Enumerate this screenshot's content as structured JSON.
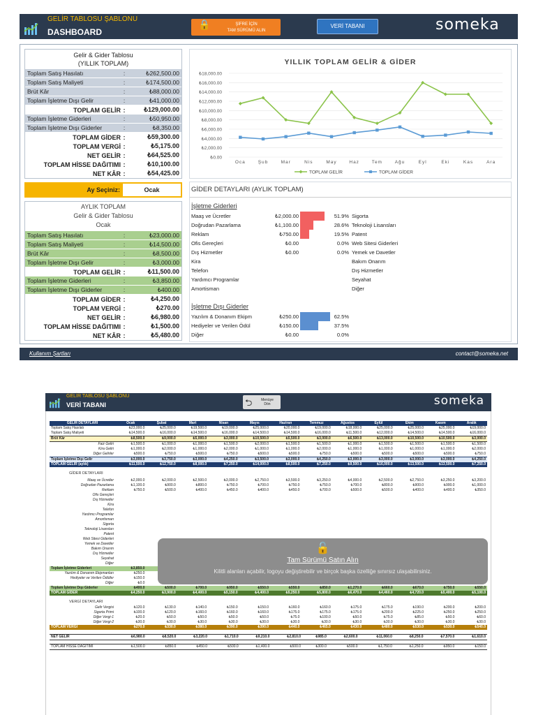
{
  "dashboard": {
    "template_title": "GELİR TABLOSU ŞABLONU",
    "title": "DASHBOARD",
    "orange_button_line1": "ŞİFRE İÇİN",
    "orange_button_line2": "TAM SÜRÜMÜ ALIN",
    "db_button": "VERİ TABANI",
    "brand": "someka",
    "footer_link": "Kullanım Şartları",
    "footer_contact": "contact@someka.net"
  },
  "annual": {
    "title1": "Gelir & Gider Tablosu",
    "title2": "(YILLIK TOPLAM)",
    "rows": [
      {
        "label": "Toplam Satış Hasılatı",
        "colon": ":",
        "value": "₺262,500.00"
      },
      {
        "label": "Toplam Satış Maliyeti",
        "colon": ":",
        "value": "₺174,500.00"
      },
      {
        "label": "Brüt Kâr",
        "colon": ":",
        "value": "₺88,000.00"
      },
      {
        "label": "Toplam İşletme Dışı Gelir",
        "colon": ":",
        "value": "₺41,000.00"
      },
      {
        "label": "TOPLAM GELİR",
        "colon": ":",
        "value": "₺129,000.00"
      },
      {
        "label": "Toplam İşletme Giderleri",
        "colon": ":",
        "value": "₺50,950.00"
      },
      {
        "label": "Toplam İşletme Dışı Giderler",
        "colon": ":",
        "value": "₺8,350.00"
      },
      {
        "label": "TOPLAM GİDER",
        "colon": ":",
        "value": "₺59,300.00"
      },
      {
        "label": "TOPLAM VERGİ",
        "colon": ":",
        "value": "₺5,175.00"
      },
      {
        "label": "NET GELİR",
        "colon": ":",
        "value": "₺64,525.00"
      },
      {
        "label": "TOPLAM HİSSE DAĞITIMI",
        "colon": ":",
        "value": "₺10,100.00"
      },
      {
        "label": "NET KÂR",
        "colon": ":",
        "value": "₺54,425.00"
      }
    ]
  },
  "month_select": {
    "label": "Ay Seçiniz:",
    "value": "Ocak"
  },
  "monthly": {
    "title1": "AYLIK TOPLAM",
    "title2": "Gelir & Gider Tablosu",
    "title3": "Ocak",
    "rows": [
      {
        "label": "Toplam Satış Hasılatı",
        "colon": ":",
        "value": "₺23,000.00"
      },
      {
        "label": "Toplam Satış Maliyeti",
        "colon": ":",
        "value": "₺14,500.00"
      },
      {
        "label": "Brüt Kâr",
        "colon": ":",
        "value": "₺8,500.00"
      },
      {
        "label": "Toplam İşletme Dışı Gelir",
        "colon": ":",
        "value": "₺3,000.00"
      },
      {
        "label": "TOPLAM GELİR",
        "colon": ":",
        "value": "₺11,500.00"
      },
      {
        "label": "Toplam İşletme Giderleri",
        "colon": ":",
        "value": "₺3,850.00"
      },
      {
        "label": "Toplam İşletme Dışı Giderler",
        "colon": ":",
        "value": "₺400.00"
      },
      {
        "label": "TOPLAM GİDER",
        "colon": ":",
        "value": "₺4,250.00"
      },
      {
        "label": "TOPLAM VERGİ",
        "colon": ":",
        "value": "₺270.00"
      },
      {
        "label": "NET GELİR",
        "colon": ":",
        "value": "₺6,980.00"
      },
      {
        "label": "TOPLAM HİSSE DAĞITIMI",
        "colon": ":",
        "value": "₺1,500.00"
      },
      {
        "label": "NET KÂR",
        "colon": ":",
        "value": "₺5,480.00"
      }
    ]
  },
  "chart_data": {
    "type": "line",
    "title": "YILLIK TOPLAM GELİR & GİDER",
    "categories": [
      "Oca",
      "Şub",
      "Mar",
      "Nis",
      "May",
      "Haz",
      "Tem",
      "Ağu",
      "Eyl",
      "Eki",
      "Kas",
      "Ara"
    ],
    "y_ticks": [
      "₺0.00",
      "₺2,000.00",
      "₺4,000.00",
      "₺6,000.00",
      "₺8,000.00",
      "₺10,000.00",
      "₺12,000.00",
      "₺14,000.00",
      "₺16,000.00",
      "₺18,000.00"
    ],
    "ylim": [
      0,
      18000
    ],
    "grid": true,
    "legend": "bottom",
    "series": [
      {
        "name": "TOPLAM GELİR",
        "color": "#8bc34a",
        "values": [
          11500,
          12750,
          8000,
          7250,
          14000,
          8500,
          7250,
          9500,
          16000,
          13500,
          13500,
          7250
        ]
      },
      {
        "name": "TOPLAM GİDER",
        "color": "#5b9bd5",
        "values": [
          4250,
          3900,
          4400,
          5150,
          4400,
          5250,
          5800,
          6470,
          4460,
          4720,
          5400,
          5100
        ]
      }
    ]
  },
  "expense_details": {
    "title": "GİDER DETAYLARI (AYLIK TOPLAM)",
    "op_title": "İşletme Giderleri",
    "op_rows": [
      {
        "label": "Maaş ve Ücretler",
        "value": "₺2,000.00",
        "pct": "51.9%",
        "ratio": 0.519
      },
      {
        "label": "Doğrudan Pazarlama",
        "value": "₺1,100.00",
        "pct": "28.6%",
        "ratio": 0.286
      },
      {
        "label": "Reklam",
        "value": "₺750.00",
        "pct": "19.5%",
        "ratio": 0.195
      },
      {
        "label": "Ofis Gereçleri",
        "value": "₺0.00",
        "pct": "0.0%",
        "ratio": 0
      },
      {
        "label": "Dış Hizmetler",
        "value": "₺0.00",
        "pct": "0.0%",
        "ratio": 0
      },
      {
        "label": "Kira",
        "value": "",
        "pct": "",
        "ratio": 0
      },
      {
        "label": "Telefon",
        "value": "",
        "pct": "",
        "ratio": 0
      },
      {
        "label": "Yardımcı Programlar",
        "value": "",
        "pct": "",
        "ratio": 0
      },
      {
        "label": "Amortisman",
        "value": "",
        "pct": "",
        "ratio": 0
      }
    ],
    "right_list": [
      "Sigorta",
      "Teknoloji Lisansları",
      "Patent",
      "Web Sitesi Giderleri",
      "Yemek ve Davetler",
      "Bakım Onarım",
      "Dış Hizmetler",
      "Seyahat",
      "Diğer"
    ],
    "nonop_title": "İşletme Dışı Giderler",
    "nonop_rows": [
      {
        "label": "Yazılım & Donanım Ekipm",
        "value": "₺250.00",
        "pct": "62.5%",
        "ratio": 0.625
      },
      {
        "label": "Hediyeler ve Verilen Ödül",
        "value": "₺150.00",
        "pct": "37.5%",
        "ratio": 0.375
      },
      {
        "label": "Diğer",
        "value": "₺0.00",
        "pct": "0.0%",
        "ratio": 0
      }
    ]
  },
  "database": {
    "template_title": "GELİR TABLOSU ŞABLONU",
    "title": "VERİ TABANI",
    "menu_line1": "Menüye",
    "menu_line2": "Dön",
    "brand": "someka",
    "header_cols": [
      "GELİR DETAYLARI",
      "Ocak",
      "Şubat",
      "Mart",
      "Nisan",
      "Mayıs",
      "Haziran",
      "Temmuz",
      "Ağustos",
      "Eylül",
      "Ekim",
      "Kasım",
      "Aralık"
    ],
    "income_rows": [
      {
        "label": "Toplam Satış Hasılatı",
        "cls": "l",
        "vals": [
          "₺23,000.0",
          "₺25,000.0",
          "₺19,500.0",
          "₺19,000.0",
          "₺25,000.0",
          "₺20,000.0",
          "₺19,000.0",
          "₺18,000.0",
          "₺25,000.0",
          "₺25,000.0",
          "₺25,000.0",
          "₺19,000.0"
        ]
      },
      {
        "label": "Toplam Satış Maliyeti",
        "cls": "l",
        "vals": [
          "₺14,500.0",
          "₺16,000.0",
          "₺14,500.0",
          "₺16,000.0",
          "₺14,500.0",
          "₺14,500.0",
          "₺16,000.0",
          "₺11,500.0",
          "₺12,000.0",
          "₺14,500.0",
          "₺14,500.0",
          "₺16,000.0"
        ]
      },
      {
        "label": "Brüt Kâr",
        "cls": "l",
        "vals": [
          "₺8,500.0",
          "₺9,000.0",
          "₺5,000.0",
          "₺3,000.0",
          "₺10,500.0",
          "₺5,500.0",
          "₺3,000.0",
          "₺6,500.0",
          "₺13,000.0",
          "₺10,500.0",
          "₺10,500.0",
          "₺3,000.0"
        ]
      },
      {
        "label": "Faiz Geliri",
        "cls": "r",
        "vals": [
          "₺1,500.0",
          "₺1,000.0",
          "₺1,000.0",
          "₺1,500.0",
          "₺2,000.0",
          "₺1,500.0",
          "₺1,500.0",
          "₺1,000.0",
          "₺1,500.0",
          "₺1,500.0",
          "₺1,500.0",
          "₺1,500.0"
        ]
      },
      {
        "label": "Kira Geliri",
        "cls": "r",
        "vals": [
          "₺1,000.0",
          "₺2,000.0",
          "₺1,000.0",
          "₺2,000.0",
          "₺1,000.0",
          "₺1,000.0",
          "₺2,000.0",
          "₺1,000.0",
          "₺1,000.0",
          "₺1,000.0",
          "₺1,000.0",
          "₺2,000.0"
        ]
      },
      {
        "label": "Diğer Gelirler",
        "cls": "r",
        "vals": [
          "₺500.0",
          "₺750.0",
          "₺500.0",
          "₺750.0",
          "₺500.0",
          "₺500.0",
          "₺750.0",
          "₺500.0",
          "₺500.0",
          "₺500.0",
          "₺500.0",
          "₺750.0"
        ]
      },
      {
        "label": "Toplam İşletme Dışı Gelir",
        "cls": "l",
        "vals": [
          "₺3,000.0",
          "₺3,750.0",
          "₺3,000.0",
          "₺4,250.0",
          "₺3,500.0",
          "₺3,000.0",
          "₺4,250.0",
          "₺3,000.0",
          "₺3,000.0",
          "₺3,000.0",
          "₺3,000.0",
          "₺4,250.0"
        ]
      },
      {
        "label": "TOPLAM GELİR (aylık)",
        "cls": "l",
        "vals": [
          "₺11,500.0",
          "₺12,750.0",
          "₺8,000.0",
          "₺7,250.0",
          "₺14,000.0",
          "₺8,500.0",
          "₺7,250.0",
          "₺9,500.0",
          "₺16,000.0",
          "₺13,500.0",
          "₺13,500.0",
          "₺7,250.0"
        ]
      }
    ],
    "expense_title": "GİDER DETAYLARI",
    "expense_rows": [
      {
        "label": "Maaş ve Ücretler",
        "vals": [
          "₺2,000.0",
          "₺2,000.0",
          "₺2,500.0",
          "₺3,000.0",
          "₺2,750.0",
          "₺3,500.0",
          "₺3,250.0",
          "₺4,000.0",
          "₺2,500.0",
          "₺2,750.0",
          "₺3,250.0",
          "₺3,200.0"
        ]
      },
      {
        "label": "Doğrudan Pazarlama",
        "vals": [
          "₺1,100.0",
          "₺900.0",
          "₺800.0",
          "₺750.0",
          "₺700.0",
          "₺750.0",
          "₺750.0",
          "₺700.0",
          "₺800.0",
          "₺900.0",
          "₺900.0",
          "₺1,000.0"
        ]
      },
      {
        "label": "Reklam",
        "vals": [
          "₺750.0",
          "₺500.0",
          "₺400.0",
          "₺450.0",
          "₺400.0",
          "₺450.0",
          "₺700.0",
          "₺500.0",
          "₺500.0",
          "₺400.0",
          "₺400.0",
          "₺350.0"
        ]
      },
      {
        "label": "Ofis Gereçleri",
        "vals": []
      },
      {
        "label": "Dış Hizmetler",
        "vals": []
      },
      {
        "label": "Kira",
        "vals": []
      },
      {
        "label": "Telefon",
        "vals": []
      },
      {
        "label": "Yardımcı Programlar",
        "vals": []
      },
      {
        "label": "Amortisman",
        "vals": []
      },
      {
        "label": "Sigorta",
        "vals": []
      },
      {
        "label": "Teknoloji Lisansları",
        "vals": []
      },
      {
        "label": "Patent",
        "vals": []
      },
      {
        "label": "Web Sitesi Giderleri",
        "vals": []
      },
      {
        "label": "Yemek ve Davetler",
        "vals": []
      },
      {
        "label": "Bakım Onarım",
        "vals": []
      },
      {
        "label": "Dış Hizmetler",
        "vals": []
      },
      {
        "label": "Seyahat",
        "vals": []
      },
      {
        "label": "Diğer",
        "vals": []
      }
    ],
    "lock_title": "Tam Sürümü Satın Alın",
    "lock_text": "Kilitli alanları açabilir, logoyu değiştirebilir ve birçok başka özelliğe sınırsız ulaşabilirsiniz.",
    "op_total": {
      "label": "Toplam İşletme Giderleri",
      "vals": [
        "₺3,850.0",
        "₺3,400.0",
        "₺3,700.0",
        "₺4,200.0",
        "₺3,850.0",
        "₺4,700.0",
        "₺4,950.0",
        "₺5,200.0",
        "₺3,800.0",
        "₺4,050.0",
        "₺4,650.0",
        "₺4,550.0"
      ]
    },
    "nonop_rows": [
      {
        "label": "Yazılım & Donanım Ekipmanları",
        "vals": [
          "₺250.0",
          "₺250.0",
          "₺350.0",
          "₺450.0",
          "₺400.0",
          "₺400.0",
          "₺450.0",
          "₺520.0",
          "₺360.0",
          "₺370.0",
          "₺250.0",
          "₺300.0"
        ]
      },
      {
        "label": "Hediyeler ve Verilen Ödüller",
        "vals": [
          "₺150.0",
          "₺250.0",
          "₺350.0",
          "₺500.0",
          "₺150.0",
          "₺150.0",
          "₺400.0",
          "₺750.0",
          "₺300.0",
          "₺300.0",
          "₺500.0",
          "₺250.0"
        ]
      },
      {
        "label": "Diğer",
        "vals": [
          "₺0.0",
          "₺0.0",
          "₺0.0",
          "₺0.0",
          "₺0.0",
          "₺0.0",
          "₺0.0",
          "₺0.0",
          "₺0.0",
          "₺0.0",
          "₺0.0",
          "₺0.0"
        ]
      }
    ],
    "nonop_total": {
      "label": "Toplam İşletme Dışı Giderler",
      "vals": [
        "₺400.0",
        "₺500.0",
        "₺700.0",
        "₺950.0",
        "₺550.0",
        "₺550.0",
        "₺850.0",
        "₺1,270.0",
        "₺660.0",
        "₺670.0",
        "₺750.0",
        "₺550.0"
      ]
    },
    "expense_total": {
      "label": "TOPLAM GİDER",
      "vals": [
        "₺4,250.0",
        "₺3,900.0",
        "₺4,400.0",
        "₺5,150.0",
        "₺4,400.0",
        "₺5,250.0",
        "₺5,800.0",
        "₺6,470.0",
        "₺4,460.0",
        "₺4,720.0",
        "₺5,400.0",
        "₺5,100.0"
      ]
    },
    "tax_title": "VERGİ DETAYLARI",
    "tax_rows": [
      {
        "label": "Gelir Vergisi",
        "vals": [
          "₺120.0",
          "₺130.0",
          "₺140.0",
          "₺150.0",
          "₺150.0",
          "₺160.0",
          "₺160.0",
          "₺175.0",
          "₺175.0",
          "₺190.0",
          "₺200.0",
          "₺200.0"
        ]
      },
      {
        "label": "Sigorta Primi",
        "vals": [
          "₺100.0",
          "₺120.0",
          "₺160.0",
          "₺160.0",
          "₺160.0",
          "₺175.0",
          "₺175.0",
          "₺175.0",
          "₺200.0",
          "₺225.0",
          "₺250.0",
          "₺250.0"
        ]
      },
      {
        "label": "Diğer Vergi-1",
        "vals": [
          "₺20.0",
          "₺50.0",
          "₺50.0",
          "₺50.0",
          "₺50.0",
          "₺75.0",
          "₺100.0",
          "₺50.0",
          "₺75.0",
          "₺85.0",
          "₺50.0",
          "₺60.0"
        ]
      },
      {
        "label": "Diğer Vergi-2",
        "vals": [
          "₺30.0",
          "₺30.0",
          "₺30.0",
          "₺30.0",
          "₺30.0",
          "₺30.0",
          "₺30.0",
          "₺30.0",
          "₺30.0",
          "₺30.0",
          "₺30.0",
          "₺30.0"
        ]
      }
    ],
    "tax_total": {
      "label": "TOPLAM VERGİ",
      "vals": [
        "₺270.0",
        "₺330.0",
        "₺380.0",
        "₺390.0",
        "₺390.0",
        "₺440.0",
        "₺465.0",
        "₺430.0",
        "₺480.0",
        "₺530.0",
        "₺530.0",
        "₺540.0"
      ]
    },
    "net_income": {
      "label": "NET GELİR",
      "vals": [
        "₺6,980.0",
        "₺8,520.0",
        "₺3,220.0",
        "₺1,710.0",
        "₺9,210.0",
        "₺2,810.0",
        "₺985.0",
        "₺2,600.0",
        "₺11,060.0",
        "₺8,250.0",
        "₺7,570.0",
        "₺1,610.0"
      ]
    },
    "dividend": {
      "label": "TOPLAM HİSSE DAĞITIMI",
      "vals": [
        "₺1,500.0",
        "₺850.0",
        "₺450.0",
        "₺500.0",
        "₺1,400.0",
        "₺500.0",
        "₺300.0",
        "₺500.0",
        "₺1,750.0",
        "₺1,250.0",
        "₺950.0",
        "₺150.0"
      ]
    }
  }
}
